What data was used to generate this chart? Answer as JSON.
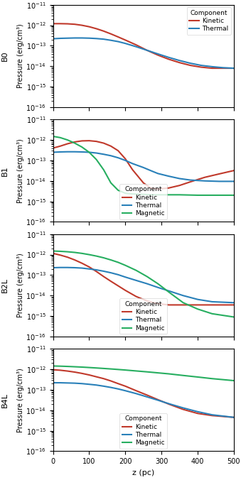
{
  "panels": [
    {
      "label": "B0",
      "legend_loc": "upper right",
      "has_magnetic": false,
      "kinetic": {
        "x": [
          0,
          20,
          40,
          60,
          80,
          100,
          120,
          140,
          160,
          180,
          200,
          230,
          260,
          290,
          320,
          350,
          380,
          410,
          440,
          470,
          500
        ],
        "y": [
          1.2e-12,
          1.2e-12,
          1.18e-12,
          1.12e-12,
          1e-12,
          8.5e-13,
          6.8e-13,
          5.2e-13,
          3.8e-13,
          2.7e-13,
          1.9e-13,
          1.1e-13,
          6e-14,
          3.5e-14,
          2.2e-14,
          1.5e-14,
          1.1e-14,
          9e-15,
          8e-15,
          8e-15,
          8e-15
        ]
      },
      "thermal": {
        "x": [
          0,
          20,
          40,
          60,
          80,
          100,
          120,
          140,
          160,
          180,
          200,
          230,
          260,
          290,
          320,
          350,
          380,
          410,
          440,
          470,
          500
        ],
        "y": [
          2.2e-13,
          2.3e-13,
          2.35e-13,
          2.4e-13,
          2.4e-13,
          2.35e-13,
          2.25e-13,
          2.1e-13,
          1.85e-13,
          1.6e-13,
          1.3e-13,
          9e-14,
          6e-14,
          4e-14,
          2.7e-14,
          1.9e-14,
          1.4e-14,
          1.1e-14,
          9.5e-15,
          8.5e-15,
          8e-15
        ]
      }
    },
    {
      "label": "B1",
      "legend_loc": "lower center",
      "has_magnetic": true,
      "kinetic": {
        "x": [
          0,
          20,
          40,
          60,
          80,
          100,
          120,
          140,
          160,
          180,
          200,
          220,
          250,
          270,
          290,
          320,
          350,
          380,
          420,
          460,
          500
        ],
        "y": [
          4e-13,
          5e-13,
          6.5e-13,
          8e-13,
          9e-13,
          9.2e-13,
          8.5e-13,
          7e-13,
          5e-13,
          3e-13,
          1.2e-13,
          3.5e-14,
          8e-15,
          4.5e-15,
          4e-15,
          4.5e-15,
          6e-15,
          9e-15,
          1.5e-14,
          2.2e-14,
          3.2e-14
        ]
      },
      "thermal": {
        "x": [
          0,
          20,
          40,
          60,
          80,
          100,
          120,
          140,
          160,
          180,
          200,
          220,
          250,
          270,
          290,
          320,
          350,
          380,
          420,
          460,
          500
        ],
        "y": [
          2.5e-13,
          2.6e-13,
          2.65e-13,
          2.65e-13,
          2.6e-13,
          2.5e-13,
          2.3e-13,
          2e-13,
          1.7e-13,
          1.35e-13,
          1e-13,
          7e-14,
          4.5e-14,
          3.2e-14,
          2.3e-14,
          1.7e-14,
          1.3e-14,
          1.1e-14,
          1e-14,
          9.5e-15,
          9.5e-15
        ]
      },
      "magnetic": {
        "x": [
          0,
          20,
          40,
          60,
          80,
          100,
          120,
          140,
          160,
          180,
          200,
          220,
          250,
          270,
          290,
          310,
          350,
          400,
          450,
          500
        ],
        "y": [
          1.5e-12,
          1.3e-12,
          1e-12,
          7e-13,
          4.5e-13,
          2.5e-13,
          1.1e-13,
          3.5e-14,
          8e-15,
          3.5e-15,
          2.5e-15,
          2.3e-15,
          2.2e-15,
          2.1e-15,
          2.1e-15,
          2.1e-15,
          2.1e-15,
          2e-15,
          2e-15,
          2e-15
        ]
      }
    },
    {
      "label": "B2L",
      "legend_loc": "lower center",
      "has_magnetic": true,
      "kinetic": {
        "x": [
          0,
          20,
          40,
          60,
          80,
          100,
          120,
          140,
          160,
          180,
          200,
          230,
          260,
          290,
          320,
          360,
          400,
          440,
          500
        ],
        "y": [
          1.15e-12,
          9.5e-13,
          7.5e-13,
          5.5e-13,
          3.8e-13,
          2.5e-13,
          1.5e-13,
          8.5e-14,
          5e-14,
          3e-14,
          1.8e-14,
          9e-15,
          5.5e-15,
          4e-15,
          3.5e-15,
          3.5e-15,
          3.5e-15,
          3.5e-15,
          3.5e-15
        ]
      },
      "thermal": {
        "x": [
          0,
          20,
          40,
          60,
          80,
          100,
          120,
          140,
          160,
          180,
          200,
          230,
          260,
          290,
          320,
          360,
          400,
          440,
          500
        ],
        "y": [
          2.3e-13,
          2.35e-13,
          2.35e-13,
          2.3e-13,
          2.2e-13,
          2e-13,
          1.8e-13,
          1.55e-13,
          1.3e-13,
          1.05e-13,
          8e-14,
          5.5e-14,
          3.8e-14,
          2.5e-14,
          1.7e-14,
          1e-14,
          6.5e-15,
          5e-15,
          4.5e-15
        ]
      },
      "magnetic": {
        "x": [
          0,
          20,
          40,
          60,
          80,
          100,
          120,
          140,
          160,
          180,
          200,
          230,
          260,
          290,
          320,
          360,
          400,
          440,
          500
        ],
        "y": [
          1.5e-12,
          1.45e-12,
          1.38e-12,
          1.28e-12,
          1.15e-12,
          1e-12,
          8.5e-13,
          7e-13,
          5.5e-13,
          4.2e-13,
          3e-13,
          1.7e-13,
          8.5e-14,
          3.8e-14,
          1.5e-14,
          4.5e-15,
          2.2e-15,
          1.3e-15,
          9e-16
        ]
      }
    },
    {
      "label": "B4L",
      "legend_loc": "lower center",
      "has_magnetic": true,
      "kinetic": {
        "x": [
          0,
          20,
          40,
          60,
          80,
          100,
          120,
          140,
          160,
          180,
          200,
          230,
          260,
          290,
          320,
          360,
          400,
          440,
          500
        ],
        "y": [
          9.5e-13,
          9e-13,
          8.2e-13,
          7.3e-13,
          6.3e-13,
          5.3e-13,
          4.3e-13,
          3.5e-13,
          2.7e-13,
          2e-13,
          1.5e-13,
          9e-14,
          5.5e-14,
          3.3e-14,
          2e-14,
          1.1e-14,
          7e-15,
          5.5e-15,
          4.5e-15
        ]
      },
      "thermal": {
        "x": [
          0,
          20,
          40,
          60,
          80,
          100,
          120,
          140,
          160,
          180,
          200,
          230,
          260,
          290,
          320,
          360,
          400,
          440,
          500
        ],
        "y": [
          2.2e-13,
          2.2e-13,
          2.15e-13,
          2.1e-13,
          2e-13,
          1.85e-13,
          1.7e-13,
          1.5e-13,
          1.3e-13,
          1.1e-13,
          9e-14,
          6.5e-14,
          4.5e-14,
          3.1e-14,
          2.1e-14,
          1.3e-14,
          8.5e-15,
          6e-15,
          4.5e-15
        ]
      },
      "magnetic": {
        "x": [
          0,
          20,
          40,
          60,
          80,
          100,
          120,
          140,
          160,
          180,
          200,
          230,
          260,
          290,
          320,
          360,
          400,
          440,
          500
        ],
        "y": [
          1.45e-12,
          1.42e-12,
          1.38e-12,
          1.33e-12,
          1.28e-12,
          1.22e-12,
          1.16e-12,
          1.1e-12,
          1.04e-12,
          9.8e-13,
          9.2e-13,
          8.3e-13,
          7.5e-13,
          6.7e-13,
          6e-13,
          5e-13,
          4.2e-13,
          3.5e-13,
          2.8e-13
        ]
      }
    }
  ],
  "xlim": [
    0,
    500
  ],
  "ylim": [
    1e-16,
    1e-11
  ],
  "ytick_labels": [
    "$10^{-16}$",
    "$10^{-15}$",
    "$10^{-14}$",
    "$10^{-13}$",
    "$10^{-12}$",
    "$10^{-11}$"
  ],
  "ytick_vals": [
    1e-16,
    1e-15,
    1e-14,
    1e-13,
    1e-12,
    1e-11
  ],
  "xticks": [
    0,
    100,
    200,
    300,
    400,
    500
  ],
  "xlabel": "z (pc)",
  "pressure_label": "Pressure (erg/cm³)",
  "color_kinetic": "#c0392b",
  "color_thermal": "#2980b9",
  "color_magnetic": "#27ae60",
  "linewidth": 1.5,
  "background_color": "#ffffff",
  "legend_title": "Component",
  "legend_entries": [
    "Kinetic",
    "Thermal",
    "Magnetic"
  ]
}
